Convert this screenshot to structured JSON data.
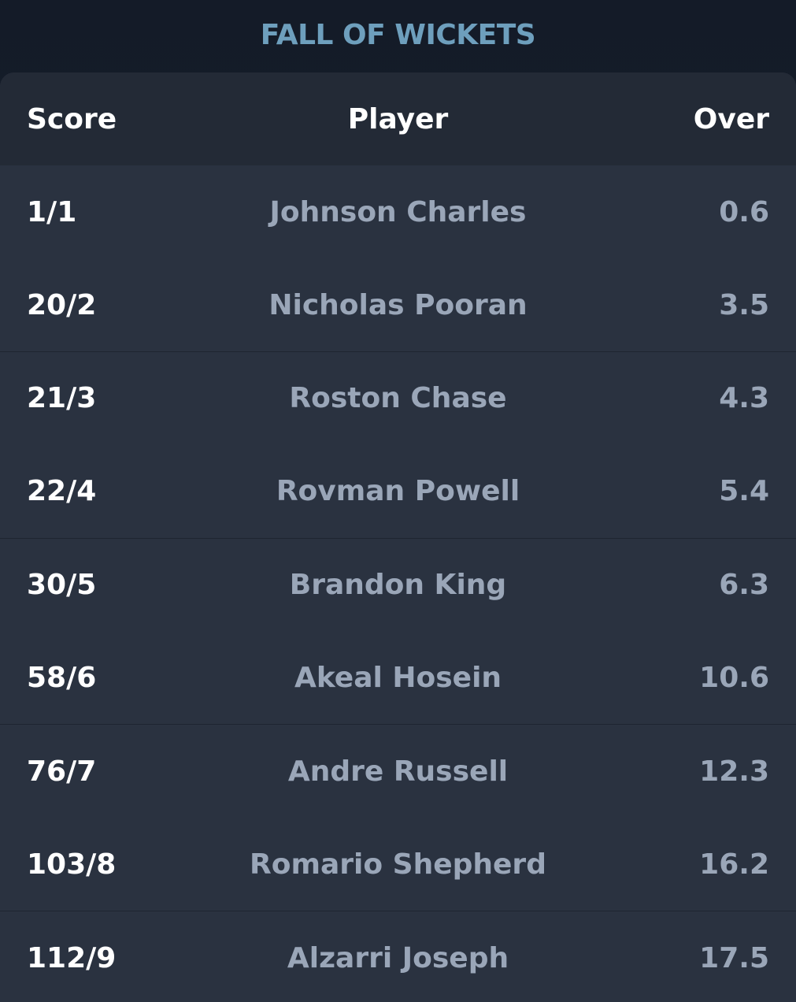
{
  "title": "FALL OF WICKETS",
  "columns": {
    "score": "Score",
    "player": "Player",
    "over": "Over"
  },
  "rows": [
    {
      "score": "1/1",
      "player": "Johnson Charles",
      "over": "0.6"
    },
    {
      "score": "20/2",
      "player": "Nicholas Pooran",
      "over": "3.5"
    },
    {
      "score": "21/3",
      "player": "Roston Chase",
      "over": "4.3"
    },
    {
      "score": "22/4",
      "player": "Rovman Powell",
      "over": "5.4"
    },
    {
      "score": "30/5",
      "player": "Brandon King",
      "over": "6.3"
    },
    {
      "score": "58/6",
      "player": "Akeal Hosein",
      "over": "10.6"
    },
    {
      "score": "76/7",
      "player": "Andre Russell",
      "over": "12.3"
    },
    {
      "score": "103/8",
      "player": "Romario Shepherd",
      "over": "16.2"
    },
    {
      "score": "112/9",
      "player": "Alzarri Joseph",
      "over": "17.5"
    }
  ],
  "colors": {
    "title": "#6e9fbd",
    "background": "#141b28",
    "card": "#2a3240",
    "header": "#232a36",
    "primary_text": "#ffffff",
    "secondary_text": "#9aa6b8"
  }
}
